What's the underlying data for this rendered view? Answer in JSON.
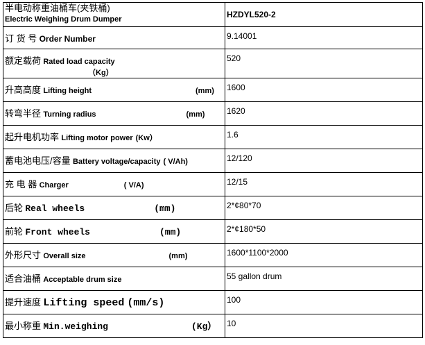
{
  "header": {
    "title_cn": "半电动称重油桶车(夹铁桶)",
    "title_en": "Electric Weighing Drum Dumper",
    "model": "HZDYL520-2"
  },
  "rows": [
    {
      "cn": "订 货 号",
      "en": "Order Number",
      "unit": "",
      "value": "9.14001"
    },
    {
      "cn": "额定载荷",
      "en": "Rated load capacity",
      "unit": "（Kg）",
      "value": "520"
    },
    {
      "cn": "升高高度",
      "en": "Lifting height",
      "unit": "(mm)",
      "value": "1600"
    },
    {
      "cn": "转弯半径",
      "en": "Turning radius",
      "unit": "(mm)",
      "value": "1620"
    },
    {
      "cn": "起升电机功率",
      "en": "Lifting motor power",
      "unit": "(Kw）",
      "value": "1.6"
    },
    {
      "cn": "蓄电池电压/容量",
      "en": "Battery voltage/capacity",
      "unit": "( V/Ah)",
      "value": "12/120"
    },
    {
      "cn": "充 电 器",
      "en": "Charger",
      "unit": "( V/A)",
      "value": "12/15"
    },
    {
      "cn": "后轮",
      "en": "Real wheels",
      "unit": "(mm)",
      "value": "2*¢80*70"
    },
    {
      "cn": "前轮",
      "en": "Front wheels",
      "unit": "(mm)",
      "value": "2*¢180*50"
    },
    {
      "cn": "外形尺寸",
      "en": "Overall size",
      "unit": "(mm)",
      "value": "1600*1100*2000"
    },
    {
      "cn": "适合油桶",
      "en": "Acceptable drum size",
      "unit": "",
      "value": "55 gallon drum"
    },
    {
      "cn": "提升速度",
      "en": "Lifting speed",
      "unit": "(mm/s)",
      "value": "100"
    },
    {
      "cn": "最小称重",
      "en": "Min.weighing",
      "unit": "(Kg）",
      "value": "10"
    }
  ]
}
